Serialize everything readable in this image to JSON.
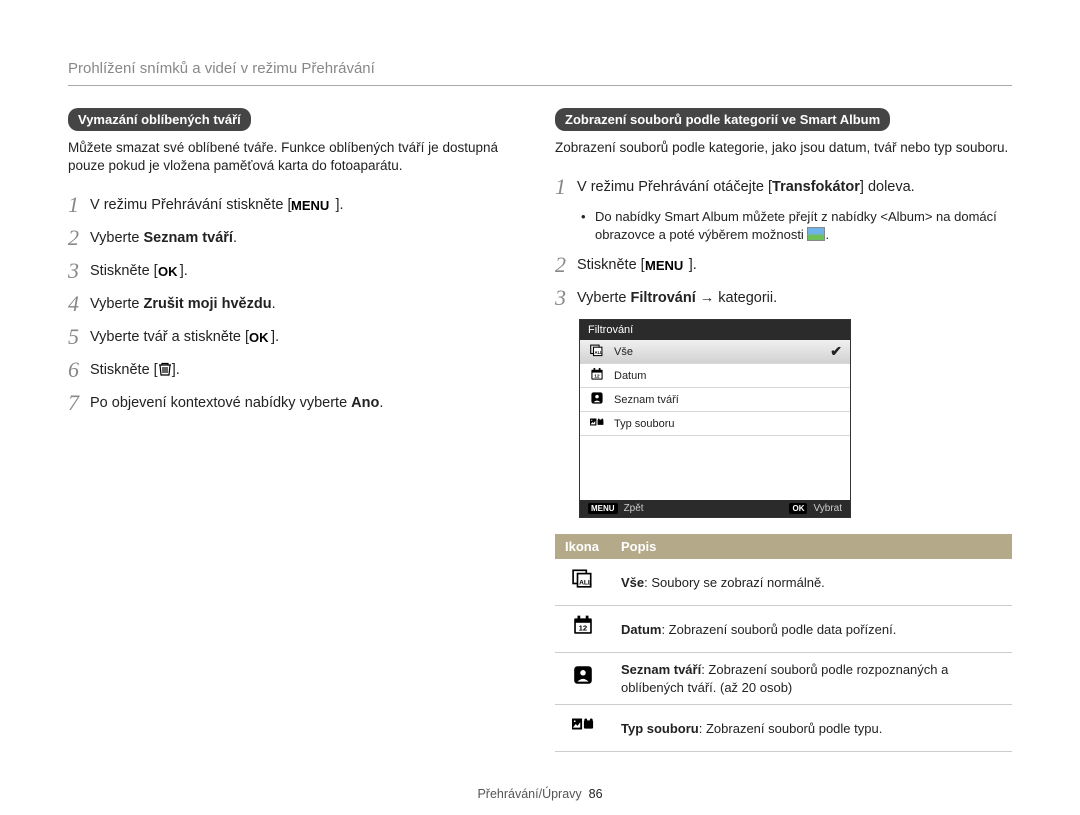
{
  "title": "Prohlížení snímků a videí v režimu Přehrávání",
  "footer": {
    "section": "Přehrávání/Úpravy",
    "page": "86"
  },
  "left": {
    "header": "Vymazání oblíbených tváří",
    "intro": "Můžete smazat své oblíbené tváře. Funkce oblíbených tváří je dostupná pouze pokud je vložena paměťová karta do fotoaparátu.",
    "steps": {
      "s1a": "V režimu Přehrávání stiskněte [",
      "s1b": "].",
      "s2a": "Vyberte ",
      "s2b": "Seznam tváří",
      "s2c": ".",
      "s3a": "Stiskněte [",
      "s3b": "].",
      "s4a": "Vyberte ",
      "s4b": "Zrušit moji hvězdu",
      "s4c": ".",
      "s5a": "Vyberte tvář a stiskněte [",
      "s5b": "].",
      "s6a": "Stiskněte [",
      "s6b": "].",
      "s7a": "Po objevení kontextové nabídky vyberte ",
      "s7b": "Ano",
      "s7c": "."
    }
  },
  "right": {
    "header": "Zobrazení souborů podle kategorií ve Smart Album",
    "intro": "Zobrazení souborů podle kategorie, jako jsou datum, tvář nebo typ souboru.",
    "steps": {
      "s1a": "V režimu Přehrávání otáčejte [",
      "s1b": "Transfokátor",
      "s1c": "] doleva.",
      "bullet1": "Do nabídky Smart Album můžete přejít z nabídky <Album> na domácí obrazovce a poté výběrem možnosti ",
      "bullet1b": ".",
      "s2a": "Stiskněte [",
      "s2b": "].",
      "s3a": "Vyberte ",
      "s3b": "Filtrování",
      "s3c": " → kategorii."
    },
    "lcd": {
      "title": "Filtrování",
      "rows": [
        {
          "icon": "all",
          "label": "Vše",
          "selected": true
        },
        {
          "icon": "date",
          "label": "Datum",
          "selected": false
        },
        {
          "icon": "face",
          "label": "Seznam tváří",
          "selected": false
        },
        {
          "icon": "type",
          "label": "Typ souboru",
          "selected": false
        }
      ],
      "footer": {
        "backTag": "MENU",
        "back": "Zpět",
        "okTag": "OK",
        "ok": "Vybrat"
      }
    },
    "table": {
      "h1": "Ikona",
      "h2": "Popis",
      "rows": [
        {
          "icon": "all",
          "bold": "Vše",
          "rest": ": Soubory se zobrazí normálně."
        },
        {
          "icon": "date",
          "bold": "Datum",
          "rest": ": Zobrazení souborů podle data pořízení."
        },
        {
          "icon": "face",
          "bold": "Seznam tváří",
          "rest": ": Zobrazení souborů podle rozpoznaných a oblíbených tváří. (až 20 osob)"
        },
        {
          "icon": "type",
          "bold": "Typ souboru",
          "rest": ": Zobrazení souborů podle typu."
        }
      ]
    }
  },
  "glyphs": {
    "menu": "MENU",
    "ok": "OK"
  }
}
